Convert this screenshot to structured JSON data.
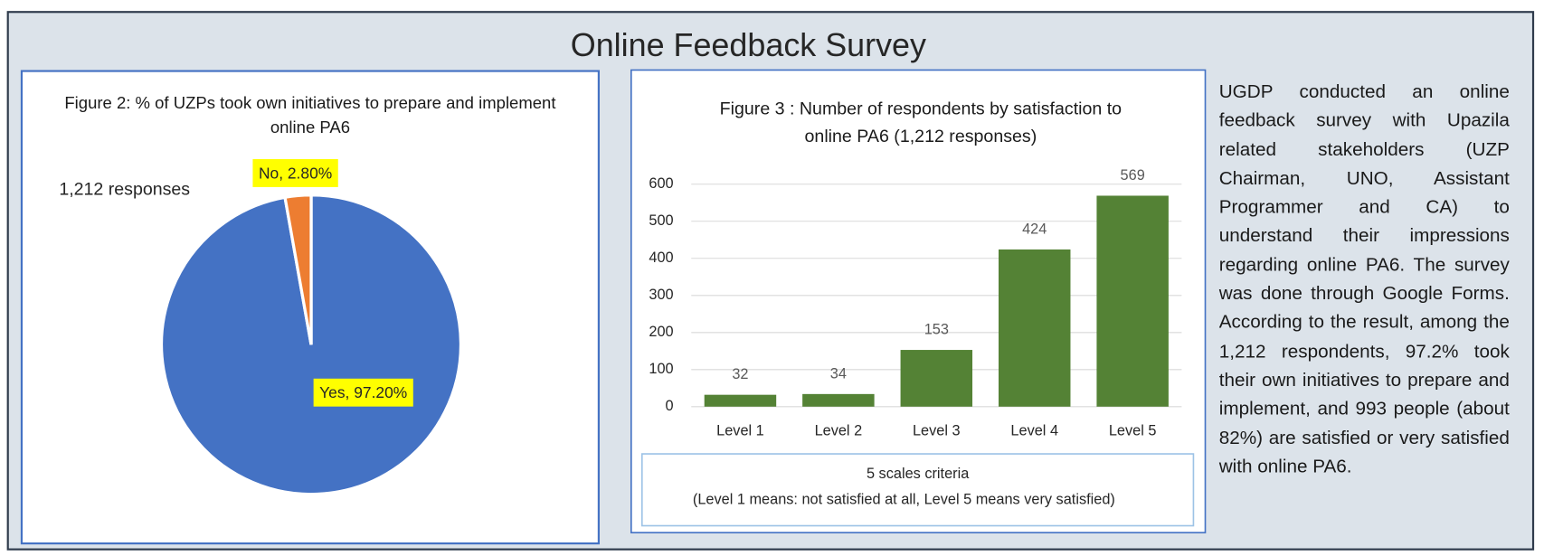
{
  "header": {
    "title": "Online Feedback Survey"
  },
  "chart_data": [
    {
      "type": "pie",
      "title": "Figure 2: % of UZPs took own initiatives to prepare and implement online PA6",
      "annotation": "1,212 responses",
      "categories": [
        "Yes",
        "No"
      ],
      "values": [
        97.2,
        2.8
      ],
      "value_labels": [
        "Yes, 97.20%",
        "No, 2.80%"
      ],
      "colors": [
        "#4472c4",
        "#ed7d31"
      ],
      "label_color": "#ffff00"
    },
    {
      "type": "bar",
      "title": "Figure 3 : Number of respondents by satisfaction to online PA6 (1,212 responses)",
      "categories": [
        "Level 1",
        "Level 2",
        "Level 3",
        "Level 4",
        "Level 5"
      ],
      "values": [
        32,
        34,
        153,
        424,
        569
      ],
      "color": "#548235",
      "ylim": [
        0,
        600
      ],
      "yticks": [
        0,
        100,
        200,
        300,
        400,
        500,
        600
      ],
      "grid": true,
      "notes": [
        "5 scales criteria",
        "(Level 1 means: not satisfied at all, Level 5 means very satisfied)"
      ]
    }
  ],
  "text": "UGDP conducted an online feedback survey with Upazila related stakeholders (UZP Chairman, UNO, Assistant Programmer and CA) to understand their impressions regarding online PA6. The survey was done through Google Forms. According to the result, among the 1,212 respondents, 97.2% took their own initiatives to prepare and implement, and 993 people (about 82%) are satisfied or very satisfied with online PA6."
}
